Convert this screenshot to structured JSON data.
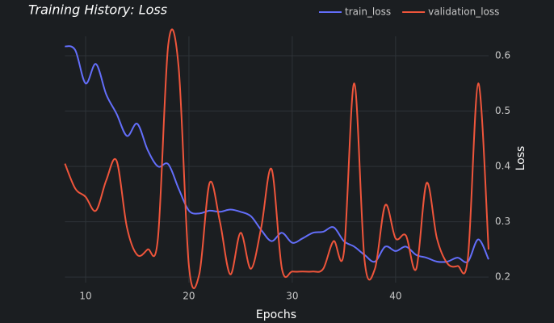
{
  "chart_data": {
    "type": "line",
    "title": "Training History: Loss",
    "x_label": "Epochs",
    "y_label": "Loss",
    "x": [
      8,
      9,
      10,
      11,
      12,
      13,
      14,
      15,
      16,
      17,
      18,
      19,
      20,
      21,
      22,
      23,
      24,
      25,
      26,
      27,
      28,
      29,
      30,
      31,
      32,
      33,
      34,
      35,
      36,
      37,
      38,
      39,
      40,
      41,
      42,
      43,
      44,
      45,
      46,
      47,
      48,
      49
    ],
    "series": [
      {
        "name": "train_loss",
        "color": "#636efa",
        "values": [
          0.617,
          0.61,
          0.55,
          0.585,
          0.53,
          0.495,
          0.455,
          0.477,
          0.43,
          0.4,
          0.404,
          0.36,
          0.32,
          0.315,
          0.32,
          0.318,
          0.322,
          0.318,
          0.31,
          0.285,
          0.265,
          0.28,
          0.262,
          0.27,
          0.28,
          0.282,
          0.29,
          0.265,
          0.255,
          0.24,
          0.228,
          0.255,
          0.247,
          0.255,
          0.24,
          0.235,
          0.228,
          0.228,
          0.235,
          0.228,
          0.268,
          0.232
        ]
      },
      {
        "name": "validation_loss",
        "color": "#ef553b",
        "values": [
          0.405,
          0.36,
          0.345,
          0.32,
          0.375,
          0.41,
          0.29,
          0.24,
          0.25,
          0.27,
          0.62,
          0.58,
          0.22,
          0.205,
          0.37,
          0.3,
          0.205,
          0.28,
          0.215,
          0.29,
          0.395,
          0.215,
          0.21,
          0.21,
          0.21,
          0.215,
          0.265,
          0.245,
          0.55,
          0.23,
          0.215,
          0.33,
          0.27,
          0.275,
          0.215,
          0.37,
          0.27,
          0.225,
          0.22,
          0.235,
          0.55,
          0.25
        ]
      }
    ],
    "xlim": [
      8,
      49
    ],
    "xticks": [
      10,
      20,
      30,
      40
    ],
    "ylim": [
      0.19,
      0.635
    ],
    "yticks": [
      0.2,
      0.3,
      0.4,
      0.5,
      0.6
    ],
    "grid": true
  }
}
